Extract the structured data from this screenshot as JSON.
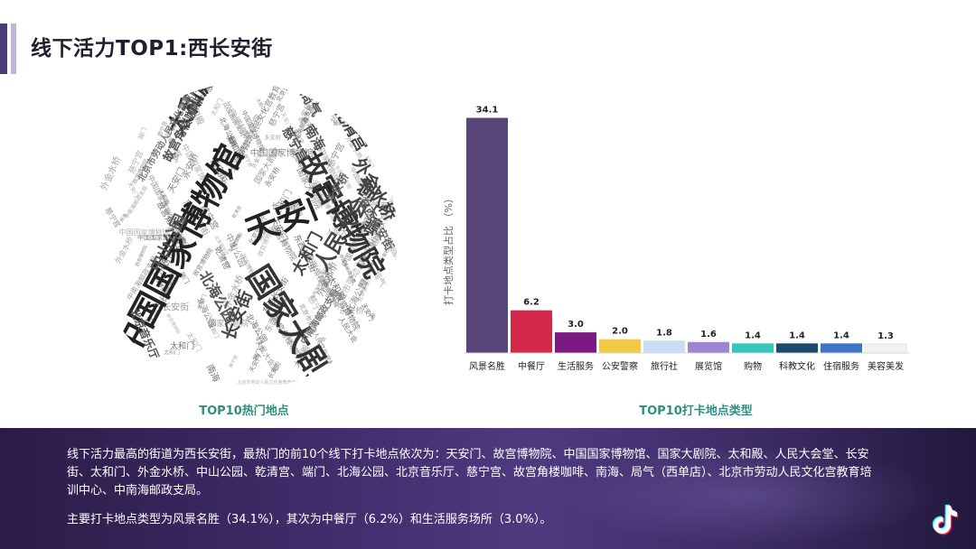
{
  "page": {
    "title": "线下活力TOP1:西长安街"
  },
  "wordcloud": {
    "caption": "TOP10热门地点",
    "words": [
      {
        "text": "中国国家博物馆",
        "color": "#222222"
      },
      {
        "text": "天安门",
        "color": "#222222"
      },
      {
        "text": "故宫博物院",
        "color": "#333333"
      },
      {
        "text": "国家大剧院",
        "color": "#333333"
      },
      {
        "text": "太和殿",
        "color": "#333333"
      },
      {
        "text": "人民大会堂",
        "color": "#444444"
      },
      {
        "text": "长安街",
        "color": "#444444"
      },
      {
        "text": "外金水桥",
        "color": "#444444"
      },
      {
        "text": "乾清宫",
        "color": "#444444"
      },
      {
        "text": "中山公园",
        "color": "#555555"
      },
      {
        "text": "太和门",
        "color": "#444444"
      },
      {
        "text": "端门",
        "color": "#444444"
      },
      {
        "text": "北海公园",
        "color": "#555555"
      },
      {
        "text": "北京音乐厅",
        "color": "#555555"
      },
      {
        "text": "慈宁宫",
        "color": "#555555"
      },
      {
        "text": "故宫角楼咖啡",
        "color": "#555555"
      },
      {
        "text": "南海",
        "color": "#555555"
      },
      {
        "text": "局气",
        "color": "#555555"
      },
      {
        "text": "永安桥",
        "color": "#666666"
      },
      {
        "text": "东西长安街",
        "color": "#666666"
      },
      {
        "text": "北京市劳动人民文化宫教育培训中心",
        "color": "#777777"
      },
      {
        "text": "中南海邮政支局",
        "color": "#777777"
      }
    ]
  },
  "chart_data": {
    "type": "bar",
    "title": "TOP10打卡地点类型",
    "ylabel": "打卡地点类型占比 （%）",
    "xlabel": "",
    "ylim": [
      0,
      36
    ],
    "categories": [
      "风景名胜",
      "中餐厅",
      "生活服务",
      "公安警察",
      "旅行社",
      "展览馆",
      "购物",
      "科教文化",
      "住宿服务",
      "美容美发"
    ],
    "values": [
      34.1,
      6.2,
      3.0,
      2.0,
      1.8,
      1.6,
      1.4,
      1.4,
      1.4,
      1.3
    ],
    "value_labels": [
      "34.1",
      "6.2",
      "3.0",
      "2.0",
      "1.8",
      "1.6",
      "1.4",
      "1.4",
      "1.4",
      "1.3"
    ],
    "colors": [
      "#574677",
      "#d32a4a",
      "#7d1a82",
      "#f3c842",
      "#c9def6",
      "#9d85d6",
      "#37c6bf",
      "#1b4b6e",
      "#3e73c6",
      "#f2f2f2"
    ],
    "grid": false
  },
  "summary": {
    "paragraph1": "线下活力最高的街道为西长安街，最热门的前10个线下打卡地点依次为：天安门、故宫博物院、中国国家博物馆、国家大剧院、太和殿、人民大会堂、长安街、太和门、外金水桥、中山公园、乾清宫、端门、北海公园、北京音乐厅、慈宁宫、故宫角楼咖啡、南海、局气（西单店）、北京市劳动人民文化宫教育培训中心、中南海邮政支局。",
    "paragraph2": "主要打卡地点类型为风景名胜（34.1%），其次为中餐厅（6.2%）和生活服务场所（3.0%）。"
  }
}
